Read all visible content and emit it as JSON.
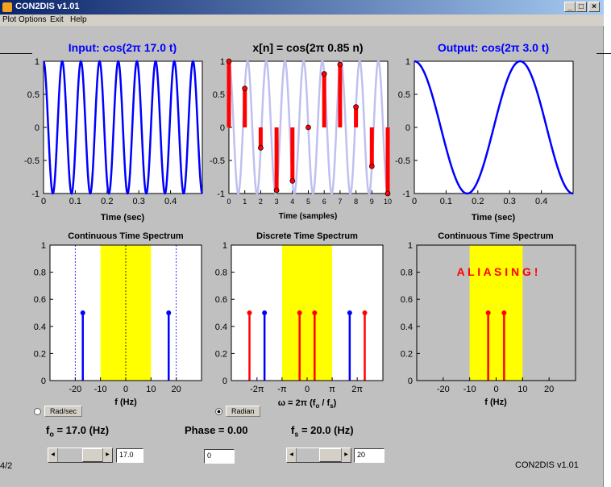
{
  "window": {
    "title": "CON2DIS v1.01",
    "icons": {
      "app": "matlab-icon",
      "min": "minimize-icon",
      "max": "maximize-icon",
      "close": "close-icon"
    }
  },
  "menu": [
    "Plot Options",
    "Exit",
    "Help"
  ],
  "plots": {
    "input": {
      "title": "Input: cos(2π 17.0 t)",
      "xlabel": "Time (sec)"
    },
    "discrete": {
      "title": "x[n] = cos(2π 0.85 n)",
      "xlabel": "Time (samples)"
    },
    "output": {
      "title": "Output: cos(2π 3.0 t)",
      "xlabel": "Time (sec)"
    },
    "ct_spec_in": {
      "title": "Continuous Time Spectrum",
      "xlabel": "f (Hz)"
    },
    "dt_spec": {
      "title": "Discrete Time Spectrum",
      "xlabel": "ω = 2π (f",
      "xlabel_sub": "o",
      "xlabel_mid": " / f",
      "xlabel_sub2": "s",
      "xlabel_end": ")"
    },
    "ct_spec_out": {
      "title": "Continuous Time Spectrum",
      "xlabel": "f (Hz)",
      "annotation": "A L I A S I N G !"
    }
  },
  "chart_data": [
    {
      "type": "line",
      "title": "Input: cos(2π 17.0 t)",
      "xlabel": "Time (sec)",
      "function": "cos(2*pi*17*t)",
      "frequency": 17.0,
      "xlim": [
        0,
        0.5
      ],
      "ylim": [
        -1,
        1
      ],
      "x_ticks": [
        0,
        0.1,
        0.2,
        0.3,
        0.4
      ],
      "y_ticks": [
        1,
        0.5,
        0,
        -0.5,
        -1
      ],
      "x_tick_labels": [
        "0",
        "0.1",
        "0.2",
        "0.3",
        "0.4"
      ],
      "y_tick_labels": [
        "1",
        "0.5",
        "0",
        "-0.5",
        "-1"
      ],
      "color": "#0000ff"
    },
    {
      "type": "bar",
      "title": "x[n] = cos(2π 0.85 n)",
      "xlabel": "Time (samples)",
      "digital_frequency": 0.85,
      "n": [
        0,
        1,
        2,
        3,
        4,
        5,
        6,
        7,
        8,
        9,
        10
      ],
      "values": [
        1.0,
        0.588,
        -0.309,
        -0.951,
        -0.809,
        0.0,
        0.809,
        0.951,
        0.309,
        -0.588,
        -1.0
      ],
      "underlying_frequency": 17.0,
      "samples_per_sec": 20.0,
      "xlim": [
        0,
        10
      ],
      "ylim": [
        -1,
        1
      ],
      "x_ticks": [
        0,
        1,
        2,
        3,
        4,
        5,
        6,
        7,
        8,
        9,
        10
      ],
      "y_ticks": [
        1,
        0.5,
        0,
        -0.5,
        -1
      ],
      "x_tick_labels": [
        "0",
        "1",
        "2",
        "3",
        "4",
        "5",
        "6",
        "7",
        "8",
        "9",
        "10"
      ],
      "y_tick_labels": [
        "1",
        "0.5",
        "0",
        "-0.5",
        "-1"
      ],
      "colors": {
        "stem": "#ff0000",
        "background_wave": "#c0c0f0"
      }
    },
    {
      "type": "line",
      "title": "Output: cos(2π 3.0 t)",
      "xlabel": "Time (sec)",
      "function": "cos(2*pi*3*t)",
      "frequency": 3.0,
      "xlim": [
        0,
        0.5
      ],
      "ylim": [
        -1,
        1
      ],
      "x_ticks": [
        0,
        0.1,
        0.2,
        0.3,
        0.4
      ],
      "y_ticks": [
        1,
        0.5,
        0,
        -0.5,
        -1
      ],
      "x_tick_labels": [
        "0",
        "0.1",
        "0.2",
        "0.3",
        "0.4"
      ],
      "y_tick_labels": [
        "1",
        "0.5",
        "0",
        "-0.5",
        "-1"
      ],
      "color": "#0000ff"
    },
    {
      "type": "bar",
      "title": "Continuous Time Spectrum",
      "xlabel": "f (Hz)",
      "xlim": [
        -30,
        30
      ],
      "ylim": [
        0,
        1
      ],
      "x_ticks": [
        -20,
        -10,
        0,
        10,
        20
      ],
      "y_ticks": [
        0,
        0.2,
        0.4,
        0.6,
        0.8,
        1
      ],
      "x_tick_labels": [
        "-20",
        "-10",
        "0",
        "10",
        "20"
      ],
      "y_tick_labels": [
        "0",
        "0.2",
        "0.4",
        "0.6",
        "0.8",
        "1"
      ],
      "passband": [
        -10,
        10
      ],
      "dashed_lines": [
        -20,
        0,
        20
      ],
      "stems": [
        {
          "f": -17,
          "value": 0.5,
          "color": "#0000ff"
        },
        {
          "f": 17,
          "value": 0.5,
          "color": "#0000ff"
        }
      ],
      "colors": {
        "passband": "#ffff00",
        "outside": "#ffffff"
      }
    },
    {
      "type": "bar",
      "title": "Discrete Time Spectrum",
      "xlabel": "ω = 2π (fo / fs)",
      "xlim": [
        -9.5,
        9.5
      ],
      "ylim": [
        0,
        1
      ],
      "x_ticks": [
        -6.2832,
        -3.1416,
        0,
        3.1416,
        6.2832
      ],
      "y_ticks": [
        0,
        0.2,
        0.4,
        0.6,
        0.8,
        1
      ],
      "x_tick_labels": [
        "-2π",
        "-π",
        "0",
        "π",
        "2π"
      ],
      "y_tick_labels": [
        "0",
        "0.2",
        "0.4",
        "0.6",
        "0.8",
        "1"
      ],
      "passband": [
        -3.1416,
        3.1416
      ],
      "stems": [
        {
          "w": -7.226,
          "value": 0.5,
          "color": "#ff0000"
        },
        {
          "w": -5.341,
          "value": 0.5,
          "color": "#0000ff"
        },
        {
          "w": -0.942,
          "value": 0.5,
          "color": "#ff0000"
        },
        {
          "w": 0.942,
          "value": 0.5,
          "color": "#ff0000"
        },
        {
          "w": 5.341,
          "value": 0.5,
          "color": "#0000ff"
        },
        {
          "w": 7.226,
          "value": 0.5,
          "color": "#ff0000"
        }
      ],
      "colors": {
        "passband": "#ffff00",
        "outside": "#ffffff"
      }
    },
    {
      "type": "bar",
      "title": "Continuous Time Spectrum",
      "xlabel": "f (Hz)",
      "xlim": [
        -30,
        30
      ],
      "ylim": [
        0,
        1
      ],
      "x_ticks": [
        -20,
        -10,
        0,
        10,
        20
      ],
      "y_ticks": [
        0,
        0.2,
        0.4,
        0.6,
        0.8,
        1
      ],
      "x_tick_labels": [
        "-20",
        "-10",
        "0",
        "10",
        "20"
      ],
      "y_tick_labels": [
        "0",
        "0.2",
        "0.4",
        "0.6",
        "0.8",
        "1"
      ],
      "passband": [
        -10,
        10
      ],
      "stems": [
        {
          "f": -3,
          "value": 0.5,
          "color": "#ff0000"
        },
        {
          "f": 3,
          "value": 0.5,
          "color": "#ff0000"
        }
      ],
      "annotation": "A L I A S I N G !",
      "colors": {
        "passband": "#ffff00",
        "outside": "#c0c0c0",
        "annotation": "#ff0000"
      }
    }
  ],
  "controls": {
    "rad_sec": {
      "label": "Rad/sec",
      "selected": false
    },
    "radian": {
      "label": "Radian",
      "selected": true
    },
    "fo": {
      "label_pre": "f",
      "label_sub": "o",
      "label_post": " = 17.0 (Hz)",
      "value": "17.0"
    },
    "phase": {
      "label": "Phase = 0.00",
      "value": "0"
    },
    "fs": {
      "label_pre": "f",
      "label_sub": "s",
      "label_post": " = 20.0 (Hz)",
      "value": "20"
    }
  },
  "edge_text": "4/2",
  "version": "CON2DIS v1.01"
}
